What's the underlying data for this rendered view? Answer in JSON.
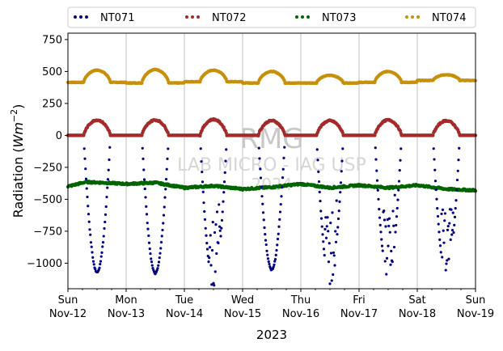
{
  "chart_data": {
    "type": "scatter",
    "title": "",
    "xlabel": "2023",
    "ylabel_prefix": "Radiation (",
    "ylabel_unit": "Wm",
    "ylabel_exp": "−2",
    "ylabel_suffix": ")",
    "ylim": [
      -1200,
      800
    ],
    "xlim": [
      0,
      7
    ],
    "yticks": [
      750,
      500,
      250,
      0,
      -250,
      -500,
      -750,
      -1000
    ],
    "ytick_labels": [
      "750",
      "500",
      "250",
      "0",
      "−250",
      "−500",
      "−750",
      "−1000"
    ],
    "xticks": [
      {
        "day": "Sun",
        "date": "Nov-12"
      },
      {
        "day": "Mon",
        "date": "Nov-13"
      },
      {
        "day": "Tue",
        "date": "Nov-14"
      },
      {
        "day": "Wed",
        "date": "Nov-15"
      },
      {
        "day": "Thu",
        "date": "Nov-16"
      },
      {
        "day": "Fri",
        "date": "Nov-17"
      },
      {
        "day": "Sat",
        "date": "Nov-18"
      },
      {
        "day": "Sun",
        "date": "Nov-19"
      }
    ],
    "grid": "x",
    "legend_position": "top",
    "watermark": {
      "line1": "RMG",
      "line2": "LAB MICRO - IAG USP",
      "line3": "2024"
    },
    "series": [
      {
        "name": "NT071",
        "color": "#000080",
        "note_values_are_daily_extrema": true,
        "daily_min": [
          -1070,
          -1080,
          -1150,
          -1050,
          -1140,
          -1110,
          -1110
        ],
        "daily_mid": [
          0,
          0,
          0,
          0,
          0,
          0,
          0
        ]
      },
      {
        "name": "NT072",
        "color": "#a52a2a",
        "daily_max": [
          120,
          120,
          125,
          115,
          115,
          120,
          115
        ],
        "night": 0
      },
      {
        "name": "NT073",
        "color": "#006400",
        "x": [
          0,
          0.3,
          0.6,
          1.0,
          1.5,
          2.0,
          2.5,
          3.0,
          3.5,
          4.0,
          4.5,
          5.0,
          5.5,
          6.0,
          6.5,
          7.0
        ],
        "y": [
          -400,
          -365,
          -370,
          -380,
          -370,
          -410,
          -395,
          -420,
          -405,
          -380,
          -410,
          -390,
          -410,
          -390,
          -420,
          -430
        ]
      },
      {
        "name": "NT074",
        "color": "#c8900a",
        "night": [
          415,
          410,
          420,
          410,
          410,
          415,
          430,
          430
        ],
        "daily_max": [
          510,
          515,
          510,
          500,
          470,
          500,
          475
        ]
      }
    ]
  }
}
